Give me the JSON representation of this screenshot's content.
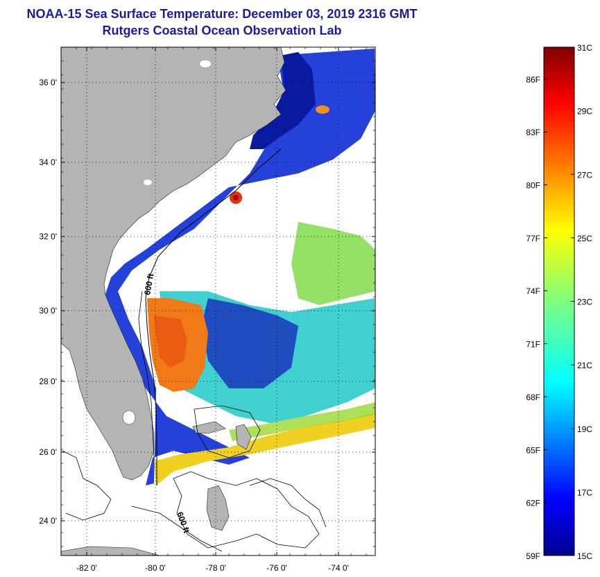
{
  "header": {
    "title": "NOAA-15 Sea Surface Temperature:  December 03, 2019 2316 GMT",
    "subtitle": "Rutgers Coastal Ocean Observation Lab"
  },
  "map": {
    "lat_range": [
      23,
      37.1
    ],
    "lon_range": [
      -83,
      -73
    ],
    "lat_ticks": [
      "36 0'",
      "34 0'",
      "32 0'",
      "30 0'",
      "28 0'",
      "26 0'",
      "24 0'"
    ],
    "lon_ticks": [
      "-82 0'",
      "-80 0'",
      "-78 0'",
      "-76 0'",
      "-74 0'"
    ],
    "contour_labels": [
      "600 ft",
      "600 ft"
    ],
    "colors": {
      "land": "#b4b4b4",
      "no_data": "#ffffff",
      "contour": "#000000"
    }
  },
  "colorbar": {
    "range_c": [
      15,
      31
    ],
    "celsius_labels": [
      "31C",
      "29C",
      "27C",
      "25C",
      "23C",
      "21C",
      "19C",
      "17C",
      "15C"
    ],
    "fahrenheit_labels": [
      "86F",
      "83F",
      "80F",
      "77F",
      "74F",
      "71F",
      "68F",
      "65F",
      "62F",
      "59F"
    ],
    "colormap": "jet"
  }
}
